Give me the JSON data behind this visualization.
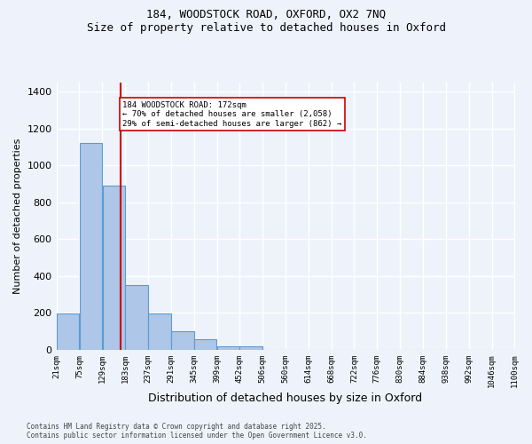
{
  "title_line1": "184, WOODSTOCK ROAD, OXFORD, OX2 7NQ",
  "title_line2": "Size of property relative to detached houses in Oxford",
  "xlabel": "Distribution of detached houses by size in Oxford",
  "ylabel": "Number of detached properties",
  "bin_labels": [
    "21sqm",
    "75sqm",
    "129sqm",
    "183sqm",
    "237sqm",
    "291sqm",
    "345sqm",
    "399sqm",
    "452sqm",
    "506sqm",
    "560sqm",
    "614sqm",
    "668sqm",
    "722sqm",
    "776sqm",
    "830sqm",
    "884sqm",
    "938sqm",
    "992sqm",
    "1046sqm",
    "1100sqm"
  ],
  "bin_edges": [
    21,
    75,
    129,
    183,
    237,
    291,
    345,
    399,
    452,
    506,
    560,
    614,
    668,
    722,
    776,
    830,
    884,
    938,
    992,
    1046,
    1100
  ],
  "bar_heights": [
    195,
    1120,
    890,
    350,
    195,
    100,
    60,
    20,
    20,
    0,
    0,
    0,
    0,
    0,
    0,
    0,
    0,
    0,
    0,
    0
  ],
  "bar_color": "#aec6e8",
  "bar_edge_color": "#5b9bd5",
  "bg_color": "#eef3fb",
  "grid_color": "#ffffff",
  "property_size": 172,
  "vline_color": "#cc0000",
  "annotation_text": "184 WOODSTOCK ROAD: 172sqm\n← 70% of detached houses are smaller (2,058)\n29% of semi-detached houses are larger (862) →",
  "annotation_box_color": "#ffffff",
  "annotation_box_edge": "#cc0000",
  "ylim": [
    0,
    1450
  ],
  "yticks": [
    0,
    200,
    400,
    600,
    800,
    1000,
    1200,
    1400
  ],
  "footer_line1": "Contains HM Land Registry data © Crown copyright and database right 2025.",
  "footer_line2": "Contains public sector information licensed under the Open Government Licence v3.0."
}
